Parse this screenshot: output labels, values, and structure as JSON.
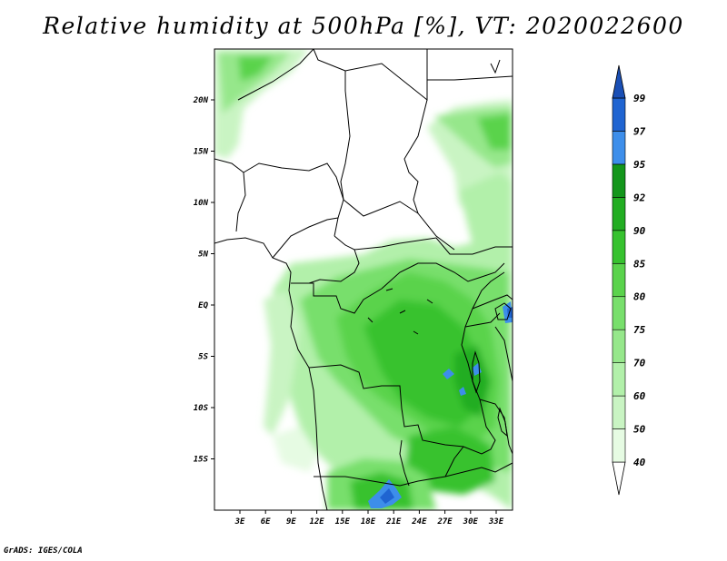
{
  "title": "Relative humidity at 500hPa [%], VT: 2020022600",
  "credit": "GrADS: IGES/COLA",
  "map": {
    "lat_labels": [
      "20N",
      "15N",
      "10N",
      "5N",
      "EQ",
      "5S",
      "10S",
      "15S"
    ],
    "lon_labels": [
      "3E",
      "6E",
      "9E",
      "12E",
      "15E",
      "18E",
      "21E",
      "24E",
      "27E",
      "30E",
      "33E"
    ]
  },
  "colorbar": {
    "levels": [
      "40",
      "50",
      "60",
      "70",
      "75",
      "80",
      "85",
      "90",
      "92",
      "95",
      "97",
      "99"
    ],
    "colors": [
      "#ffffff",
      "#e6fbe3",
      "#c9f4c3",
      "#b2f0aa",
      "#96e78b",
      "#78df6c",
      "#5ad34c",
      "#37c22f",
      "#22ad22",
      "#13961b",
      "#3d8eea",
      "#1f64d1",
      "#1a4fb5"
    ]
  },
  "chart_data": {
    "type": "heatmap",
    "title": "Relative humidity at 500hPa [%], VT: 2020022600",
    "variable": "Relative humidity at 500hPa",
    "unit": "%",
    "valid_time": "2020022600",
    "lat_range": [
      -20,
      25
    ],
    "lon_range": [
      0,
      35
    ],
    "levels": [
      40,
      50,
      60,
      70,
      75,
      80,
      85,
      90,
      92,
      95,
      97,
      99
    ],
    "features": [
      {
        "region": "Congo Basin / central Africa",
        "range": "75-92"
      },
      {
        "region": "southwest Angola / Zambia border",
        "range": "95-99"
      },
      {
        "region": "Lake Victoria area",
        "range": "95-99"
      },
      {
        "region": "northwest Sahara (top-left)",
        "range": "60-85"
      },
      {
        "region": "Sudan / Ethiopia highlands (top-right)",
        "range": "50-80"
      },
      {
        "region": "Sahel and Gulf of Guinea",
        "range": "<40"
      }
    ]
  }
}
